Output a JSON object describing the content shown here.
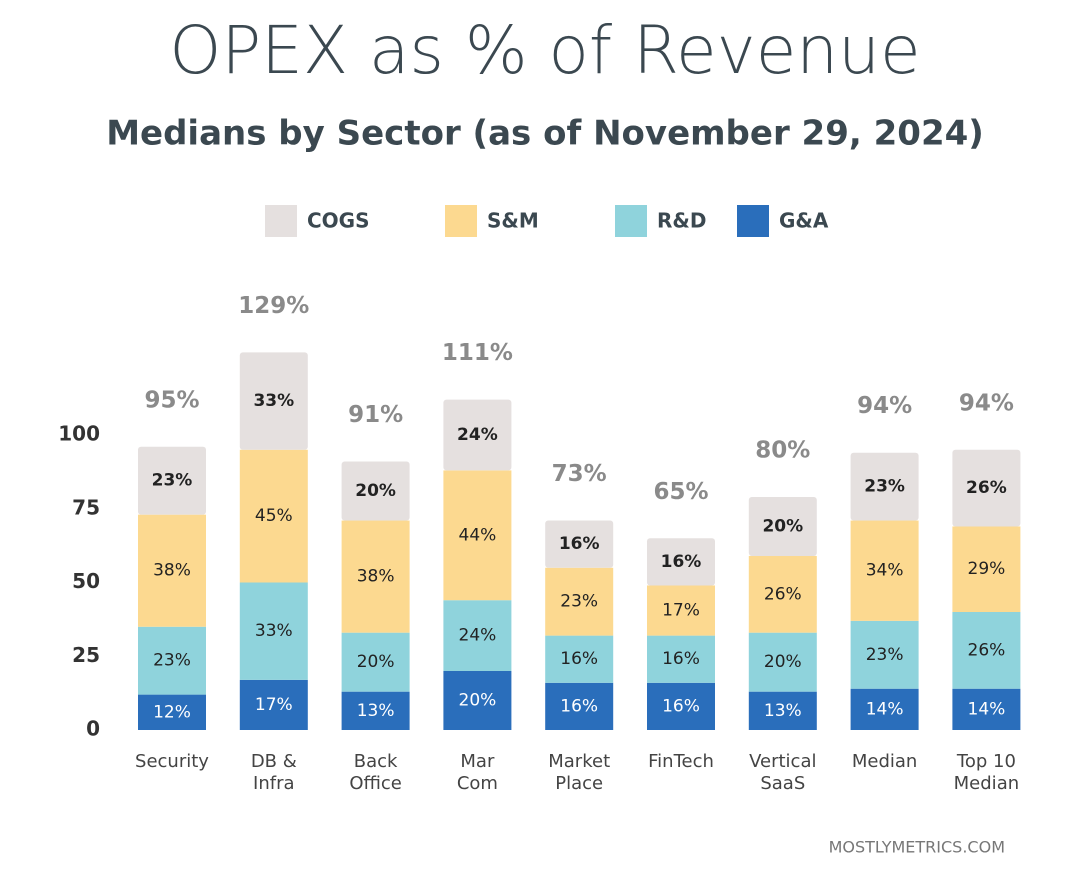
{
  "chart_data": {
    "type": "stacked_bar",
    "title": "OPEX as % of Revenue",
    "subtitle": "Medians by Sector (as of November 29, 2024)",
    "categories": [
      [
        "Security"
      ],
      [
        "DB &",
        "Infra"
      ],
      [
        "Back",
        "Office"
      ],
      [
        "Mar",
        "Com"
      ],
      [
        "Market",
        "Place"
      ],
      [
        "FinTech"
      ],
      [
        "Vertical",
        "SaaS"
      ],
      [
        "Median"
      ],
      [
        "Top 10",
        "Median"
      ]
    ],
    "series": [
      {
        "name": "COGS",
        "color": "#e5e0df",
        "values": [
          23,
          33,
          20,
          24,
          16,
          16,
          20,
          23,
          26
        ],
        "value_labels": [
          "23%",
          "33%",
          "20%",
          "24%",
          "16%",
          "16%",
          "20%",
          "23%",
          "26%"
        ]
      },
      {
        "name": "S&M",
        "color": "#fcd990",
        "values": [
          38,
          45,
          38,
          44,
          23,
          17,
          26,
          34,
          29
        ],
        "value_labels": [
          "38%",
          "45%",
          "38%",
          "44%",
          "23%",
          "17%",
          "26%",
          "34%",
          "29%"
        ]
      },
      {
        "name": "R&D",
        "color": "#8fd3dc",
        "values": [
          23,
          33,
          20,
          24,
          16,
          16,
          20,
          23,
          26
        ],
        "value_labels": [
          "23%",
          "33%",
          "20%",
          "24%",
          "16%",
          "16%",
          "20%",
          "23%",
          "26%"
        ]
      },
      {
        "name": "G&A",
        "color": "#2a6ebb",
        "values": [
          12,
          17,
          13,
          20,
          16,
          16,
          13,
          14,
          14
        ],
        "value_labels": [
          "12%",
          "17%",
          "13%",
          "20%",
          "16%",
          "16%",
          "13%",
          "14%",
          "14%"
        ]
      }
    ],
    "totals": [
      95,
      129,
      91,
      111,
      73,
      65,
      80,
      94,
      94
    ],
    "total_labels": [
      "95%",
      "129%",
      "91%",
      "111%",
      "73%",
      "65%",
      "80%",
      "94%",
      "94%"
    ],
    "ylim": [
      0,
      140
    ],
    "yticks": [
      0,
      25,
      50,
      75,
      100
    ],
    "source": "MOSTLYMETRICS.COM"
  }
}
